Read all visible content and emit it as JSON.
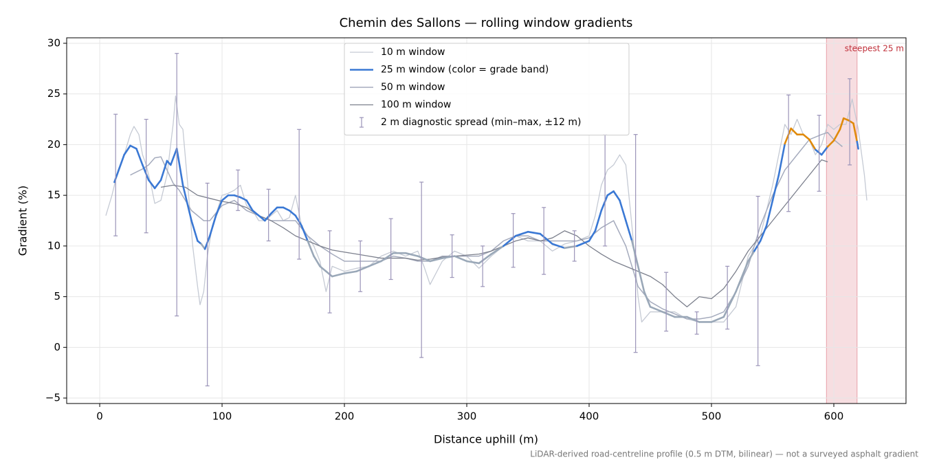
{
  "chart_data": {
    "type": "line",
    "title": "Chemin des Sallons — rolling window gradients",
    "xlabel": "Distance uphill (m)",
    "ylabel": "Gradient (%)",
    "footnote": "LiDAR-derived road-centreline profile (0.5 m DTM, bilinear) — not a surveyed asphalt gradient",
    "xlim": [
      -27,
      659
    ],
    "ylim": [
      -5.54,
      30.54
    ],
    "xticks": [
      0,
      100,
      200,
      300,
      400,
      500,
      600
    ],
    "yticks": [
      {
        "value": -5,
        "label": "−5"
      },
      0,
      5,
      10,
      15,
      20,
      25,
      30
    ],
    "grid": true,
    "highlight": {
      "x": [
        594,
        619
      ],
      "label": "steepest 25 m",
      "color": "#e8a0a8"
    },
    "series": [
      {
        "name": "10 m window",
        "color": "#c5cad4",
        "width": 1.3,
        "x": [
          5,
          10,
          15,
          20,
          25,
          28,
          32,
          35,
          38,
          42,
          45,
          50,
          55,
          60,
          62,
          65,
          68,
          72,
          76,
          80,
          82,
          85,
          88,
          92,
          96,
          100,
          105,
          110,
          115,
          120,
          125,
          130,
          135,
          140,
          145,
          150,
          155,
          160,
          165,
          170,
          175,
          180,
          185,
          190,
          200,
          210,
          220,
          230,
          240,
          250,
          260,
          265,
          270,
          280,
          290,
          300,
          310,
          320,
          330,
          340,
          350,
          360,
          370,
          380,
          390,
          400,
          405,
          410,
          415,
          420,
          425,
          430,
          435,
          440,
          443,
          450,
          460,
          470,
          480,
          490,
          500,
          510,
          520,
          530,
          540,
          550,
          555,
          560,
          565,
          570,
          575,
          580,
          585,
          590,
          595,
          600,
          605,
          610,
          615,
          620,
          625,
          627
        ],
        "values": [
          13,
          15,
          17.5,
          19,
          21,
          21.8,
          21,
          19,
          18,
          16,
          14.2,
          14.5,
          17,
          22,
          24.8,
          22,
          21.5,
          16,
          10,
          6,
          4.2,
          5.5,
          9,
          12,
          13.5,
          15,
          15.2,
          15.5,
          16,
          14,
          13.5,
          12.5,
          12.5,
          13,
          13.5,
          12.5,
          12.8,
          15,
          12,
          11,
          10,
          8.5,
          5.5,
          8,
          7.5,
          7.8,
          8,
          9,
          9.5,
          9,
          9.5,
          8,
          6.2,
          8.5,
          9.5,
          9,
          7.8,
          9,
          10,
          11,
          10.5,
          10.5,
          9.5,
          10.2,
          10.5,
          11,
          13,
          16,
          17.5,
          18,
          19,
          18,
          12,
          5,
          2.5,
          3.5,
          3.5,
          3.5,
          2.8,
          2.5,
          2.5,
          2.5,
          4,
          9,
          11,
          16,
          19,
          22,
          21,
          22.5,
          21,
          20.5,
          19,
          20,
          22,
          21.5,
          22,
          22,
          24.5,
          21.5,
          17,
          14.5
        ]
      },
      {
        "name": "25 m window (color = grade band)",
        "color": "#3a78d4",
        "width": 2.6,
        "band_thresholds": [
          10,
          20
        ],
        "band_colors": [
          "#9aa8b8",
          "#3a78d4",
          "#e08a0a"
        ],
        "x": [
          12,
          20,
          25,
          30,
          35,
          40,
          45,
          50,
          55,
          58,
          63,
          68,
          75,
          80,
          83,
          86,
          90,
          95,
          100,
          105,
          110,
          115,
          120,
          125,
          130,
          135,
          140,
          145,
          150,
          155,
          160,
          165,
          170,
          175,
          180,
          185,
          190,
          200,
          210,
          220,
          230,
          240,
          250,
          260,
          270,
          280,
          290,
          300,
          310,
          320,
          330,
          340,
          350,
          360,
          370,
          380,
          390,
          400,
          405,
          410,
          415,
          420,
          425,
          430,
          435,
          440,
          445,
          450,
          460,
          470,
          480,
          490,
          500,
          510,
          520,
          530,
          535,
          540,
          545,
          550,
          555,
          560,
          565,
          570,
          575,
          580,
          585,
          590,
          595,
          600,
          605,
          608,
          612,
          616,
          619,
          620
        ],
        "values": [
          16.3,
          19,
          19.9,
          19.6,
          18,
          16.5,
          15.7,
          16.5,
          18.4,
          18,
          19.6,
          16,
          12.5,
          10.5,
          10.2,
          9.7,
          11,
          13,
          14.5,
          15,
          15,
          14.8,
          14.5,
          13.5,
          13,
          12.5,
          13.2,
          13.8,
          13.8,
          13.5,
          13,
          12,
          10.5,
          9,
          8,
          7.5,
          7,
          7.3,
          7.5,
          8,
          8.5,
          9.3,
          9.3,
          9,
          8.5,
          8.8,
          9,
          8.5,
          8.3,
          9.2,
          10,
          11,
          11.4,
          11.2,
          10.2,
          9.8,
          10,
          10.5,
          11.5,
          13.5,
          15,
          15.4,
          14.5,
          12.5,
          10.5,
          8,
          5.5,
          4,
          3.5,
          3,
          3,
          2.5,
          2.5,
          3,
          5.5,
          8.5,
          9.5,
          10.5,
          12,
          14.5,
          17,
          20.1,
          21.6,
          21,
          21,
          20.5,
          19.5,
          19,
          19.8,
          20.4,
          21.5,
          22.6,
          22.4,
          22.1,
          20.3,
          19.6
        ]
      },
      {
        "name": "50 m window",
        "color": "#a5abbd",
        "width": 1.5,
        "x": [
          25,
          30,
          35,
          40,
          45,
          50,
          55,
          60,
          65,
          70,
          75,
          80,
          85,
          90,
          100,
          110,
          120,
          130,
          140,
          150,
          160,
          170,
          180,
          190,
          200,
          210,
          220,
          230,
          240,
          250,
          260,
          270,
          280,
          290,
          300,
          310,
          320,
          330,
          340,
          350,
          360,
          370,
          380,
          390,
          400,
          410,
          420,
          430,
          440,
          450,
          460,
          470,
          480,
          490,
          500,
          510,
          520,
          530,
          540,
          550,
          560,
          570,
          580,
          590,
          595,
          600,
          607
        ],
        "values": [
          17,
          17.3,
          17.6,
          18,
          18.7,
          18.8,
          17.5,
          16.2,
          15.5,
          14.5,
          13.5,
          13,
          12.5,
          12.5,
          14,
          14.5,
          13.5,
          13,
          12.5,
          12.5,
          12.5,
          11,
          10,
          9.2,
          8.5,
          8.5,
          8.5,
          8.5,
          9,
          8.8,
          8.5,
          8.5,
          9,
          9,
          9,
          9,
          9.5,
          10.5,
          11,
          11,
          10.5,
          10.5,
          10.5,
          10.5,
          10.8,
          11.8,
          12.5,
          10,
          6,
          4.5,
          3.8,
          3.3,
          2.8,
          2.8,
          3,
          3.5,
          5.5,
          8,
          12,
          15,
          17.5,
          19,
          20.5,
          21,
          21.2,
          20.5,
          19.8
        ]
      },
      {
        "name": "100 m window",
        "color": "#7b7f8c",
        "width": 1.3,
        "x": [
          50,
          60,
          70,
          80,
          90,
          100,
          110,
          120,
          130,
          140,
          150,
          160,
          170,
          180,
          190,
          200,
          210,
          220,
          230,
          240,
          250,
          260,
          270,
          280,
          290,
          300,
          310,
          320,
          330,
          340,
          350,
          360,
          370,
          380,
          390,
          400,
          410,
          420,
          430,
          440,
          450,
          460,
          470,
          480,
          485,
          490,
          500,
          510,
          520,
          530,
          540,
          550,
          560,
          570,
          580,
          590,
          595
        ],
        "values": [
          15.8,
          16,
          15.8,
          15,
          14.7,
          14.4,
          14.2,
          13.8,
          13,
          12.5,
          11.8,
          11,
          10.5,
          10,
          9.6,
          9.4,
          9.2,
          9,
          8.8,
          8.8,
          8.8,
          8.6,
          8.7,
          8.9,
          9,
          9.1,
          9.2,
          9.5,
          10,
          10.5,
          10.8,
          10.5,
          10.8,
          11.5,
          11,
          10,
          9.2,
          8.5,
          8,
          7.5,
          7,
          6.2,
          5,
          4,
          4.5,
          5,
          4.8,
          5.8,
          7.5,
          9.5,
          11,
          12.5,
          14,
          15.5,
          17,
          18.5,
          18.3
        ]
      }
    ],
    "errorbars": {
      "name": "2 m diagnostic spread (min–max, ±12 m)",
      "color": "#9a93b8",
      "x": [
        13,
        38,
        63,
        88,
        113,
        138,
        163,
        188,
        213,
        238,
        263,
        288,
        313,
        338,
        363,
        388,
        413,
        438,
        463,
        488,
        513,
        538,
        563,
        588,
        613
      ],
      "low": [
        11,
        11.3,
        3.1,
        -3.8,
        13.5,
        10.5,
        8.7,
        3.4,
        5.5,
        6.7,
        -1,
        6.9,
        6,
        7.9,
        7.2,
        8.5,
        10,
        -0.5,
        1.6,
        1.3,
        1.8,
        -1.8,
        13.4,
        15.4,
        18
      ],
      "high": [
        23,
        22.5,
        29,
        16.2,
        17.5,
        15.6,
        21.5,
        11.5,
        10.5,
        12.7,
        16.3,
        11.1,
        10,
        13.2,
        13.8,
        11.5,
        21,
        21,
        7.4,
        3.5,
        8,
        14.9,
        24.9,
        22.9,
        26.5
      ]
    }
  }
}
